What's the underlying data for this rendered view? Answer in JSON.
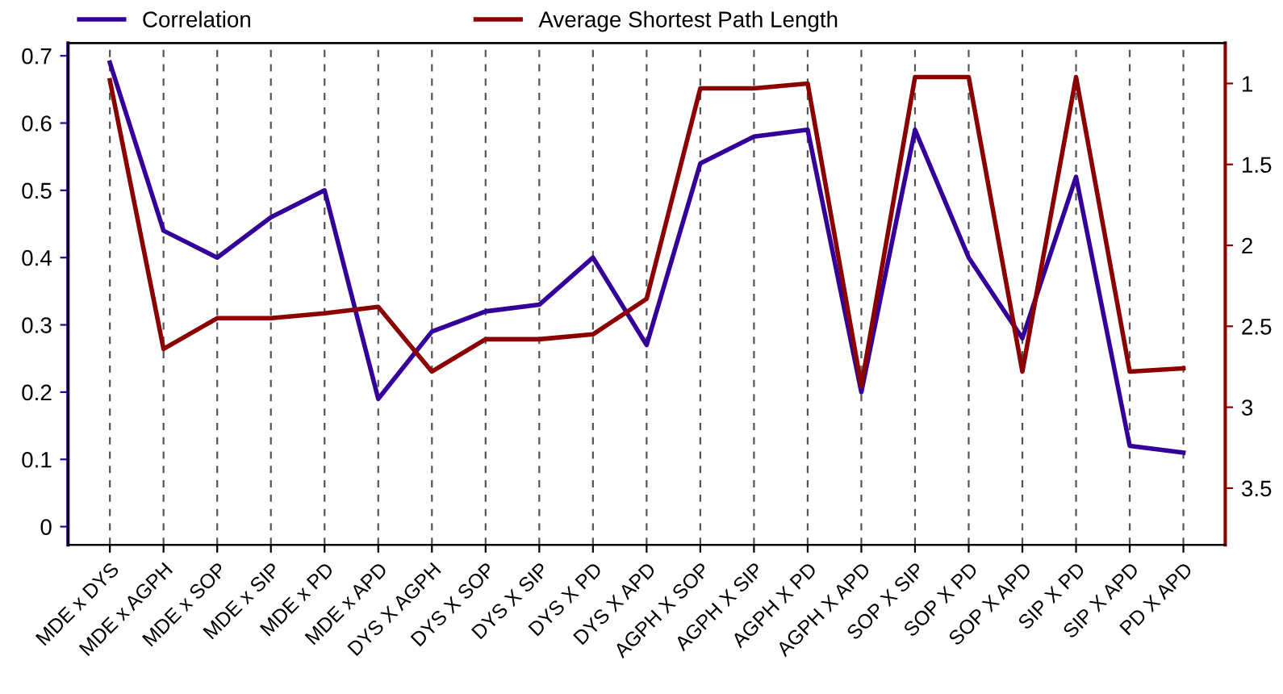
{
  "chart_data": {
    "type": "line",
    "categories": [
      "MDE x DYS",
      "MDE x AGPH",
      "MDE x SOP",
      "MDE x SIP",
      "MDE x PD",
      "MDE x APD",
      "DYS X AGPH",
      "DYS X SOP",
      "DYS X SIP",
      "DYS X PD",
      "DYS X APD",
      "AGPH X SOP",
      "AGPH X SIP",
      "AGPH X PD",
      "AGPH X APD",
      "SOP X SIP",
      "SOP X PD",
      "SOP X APD",
      "SIP X PD",
      "SIP X APD",
      "PD X APD"
    ],
    "series": [
      {
        "name": "Correlation",
        "color": "#330099",
        "values": [
          0.69,
          0.44,
          0.4,
          0.46,
          0.5,
          0.19,
          0.29,
          0.32,
          0.33,
          0.4,
          0.27,
          0.54,
          0.58,
          0.59,
          0.2,
          0.59,
          0.4,
          0.28,
          0.52,
          0.12,
          0.11
        ]
      },
      {
        "name": "Average Shortest Path Length",
        "color": "#8b0000",
        "axis": "y2",
        "values": [
          0.98,
          2.64,
          2.45,
          2.45,
          2.42,
          2.38,
          2.78,
          2.58,
          2.58,
          2.55,
          2.33,
          1.03,
          1.03,
          1.0,
          2.87,
          0.96,
          0.96,
          2.78,
          0.96,
          2.78,
          2.76
        ]
      }
    ],
    "ylim": [
      -0.027,
      0.719
    ],
    "yticks": [
      0,
      0.1,
      0.2,
      0.3,
      0.4,
      0.5,
      0.6,
      0.7
    ],
    "y2lim": [
      3.85,
      0.75
    ],
    "y2ticks": [
      1,
      1.5,
      2,
      2.5,
      3,
      3.5
    ],
    "grid": "x",
    "legend": "top",
    "line_style": "solid",
    "marker": "none"
  }
}
